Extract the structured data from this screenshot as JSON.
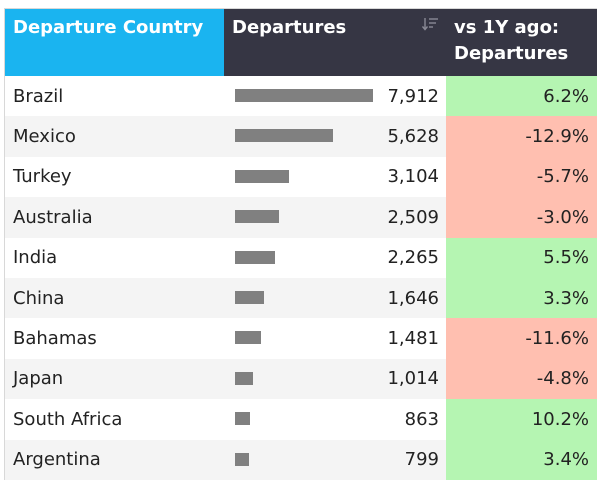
{
  "header": {
    "country": "Departure Country",
    "departures": "Departures",
    "change": "vs 1Y ago: Departures",
    "sort_icon": "sort-descending-icon"
  },
  "colors": {
    "country_header": "#1ab4f0",
    "dark_header": "#363644",
    "positive": "#b5f5b2",
    "negative": "#ffbfb0",
    "bar": "#808080"
  },
  "chart_data": {
    "type": "table",
    "columns": [
      "Departure Country",
      "Departures",
      "vs 1Y ago: Departures"
    ],
    "rows": [
      {
        "country": "Brazil",
        "departures": 7912,
        "departures_label": "7,912",
        "change": 6.2,
        "change_label": "6.2%"
      },
      {
        "country": "Mexico",
        "departures": 5628,
        "departures_label": "5,628",
        "change": -12.9,
        "change_label": "-12.9%"
      },
      {
        "country": "Turkey",
        "departures": 3104,
        "departures_label": "3,104",
        "change": -5.7,
        "change_label": "-5.7%"
      },
      {
        "country": "Australia",
        "departures": 2509,
        "departures_label": "2,509",
        "change": -3.0,
        "change_label": "-3.0%"
      },
      {
        "country": "India",
        "departures": 2265,
        "departures_label": "2,265",
        "change": 5.5,
        "change_label": "5.5%"
      },
      {
        "country": "China",
        "departures": 1646,
        "departures_label": "1,646",
        "change": 3.3,
        "change_label": "3.3%"
      },
      {
        "country": "Bahamas",
        "departures": 1481,
        "departures_label": "1,481",
        "change": -11.6,
        "change_label": "-11.6%"
      },
      {
        "country": "Japan",
        "departures": 1014,
        "departures_label": "1,014",
        "change": -4.8,
        "change_label": "-4.8%"
      },
      {
        "country": "South Africa",
        "departures": 863,
        "departures_label": "863",
        "change": 10.2,
        "change_label": "10.2%"
      },
      {
        "country": "Argentina",
        "departures": 799,
        "departures_label": "799",
        "change": 3.4,
        "change_label": "3.4%"
      }
    ]
  }
}
